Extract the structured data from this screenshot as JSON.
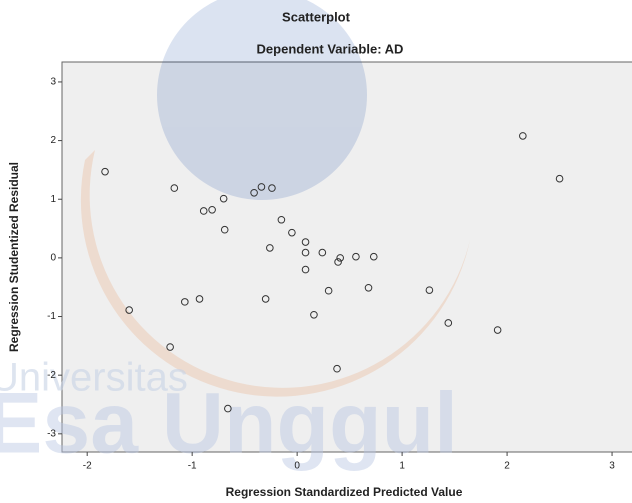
{
  "chart_data": {
    "type": "scatter",
    "title": "Scatterplot",
    "subtitle": "Dependent Variable: AD",
    "xlabel": "Regression Standardized Predicted Value",
    "ylabel": "Regression Studentized Residual",
    "xlim": [
      -2.24,
      3.19
    ],
    "ylim": [
      -3.31,
      3.34
    ],
    "xticks": [
      -2,
      -1,
      0,
      1,
      2,
      3
    ],
    "yticks": [
      -3,
      -2,
      -1,
      0,
      1,
      2,
      3
    ],
    "grid": false,
    "color": "#333333",
    "watermark": [
      "Universitas",
      "Esa Unggul"
    ],
    "x": [
      -1.83,
      -1.6,
      -1.17,
      -1.21,
      -1.07,
      -0.93,
      -0.89,
      -0.81,
      -0.7,
      -0.69,
      -0.66,
      -0.41,
      -0.34,
      -0.24,
      -0.3,
      -0.26,
      -0.15,
      -0.05,
      0.08,
      0.08,
      0.08,
      0.16,
      0.24,
      0.3,
      0.39,
      0.41,
      0.38,
      0.56,
      0.68,
      0.73,
      1.26,
      1.44,
      1.91,
      2.15,
      2.5
    ],
    "y": [
      1.47,
      -0.89,
      1.19,
      -1.52,
      -0.75,
      -0.7,
      0.8,
      0.82,
      1.01,
      0.48,
      -2.57,
      1.11,
      1.21,
      1.19,
      -0.7,
      0.17,
      0.65,
      0.43,
      0.27,
      0.09,
      -0.2,
      -0.97,
      0.09,
      -0.56,
      -0.07,
      0.0,
      -1.89,
      0.02,
      -0.51,
      0.02,
      -0.55,
      -1.11,
      -1.23,
      2.08,
      1.35
    ]
  }
}
